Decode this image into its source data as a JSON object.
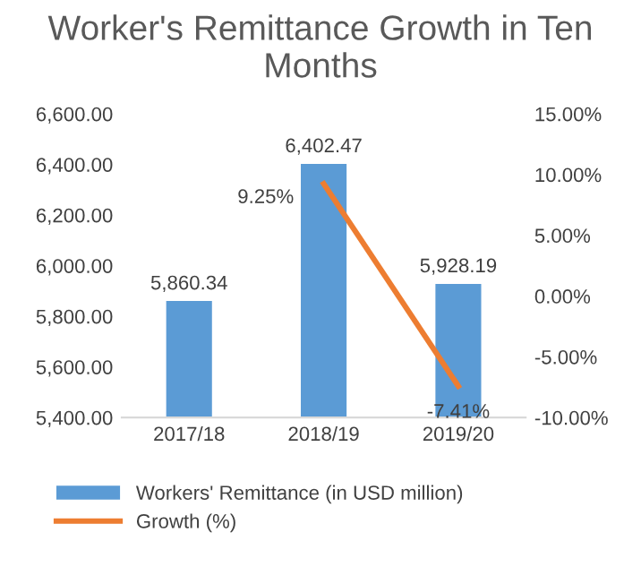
{
  "chart_data": {
    "type": "bar",
    "title": "Worker's Remittance Growth in Ten Months",
    "categories": [
      "2017/18",
      "2018/19",
      "2019/20"
    ],
    "series": [
      {
        "name": "Workers' Remittance (in USD million)",
        "color": "#5b9bd5",
        "values": [
          5860.34,
          6402.47,
          5928.19
        ],
        "value_labels": [
          "5,860.34",
          "6,402.47",
          "5,928.19"
        ]
      },
      {
        "type": "line",
        "name": "Growth (%)",
        "color": "#ed7d31",
        "axis": "y2",
        "values": [
          null,
          9.25,
          -7.41
        ],
        "value_labels": [
          null,
          "9.25%",
          "-7.41%"
        ]
      }
    ],
    "ylim": [
      5400,
      6600
    ],
    "yticks": [
      {
        "value": 5400,
        "label": "5,400.00"
      },
      {
        "value": 5600,
        "label": "5,600.00"
      },
      {
        "value": 5800,
        "label": "5,800.00"
      },
      {
        "value": 6000,
        "label": "6,000.00"
      },
      {
        "value": 6200,
        "label": "6,200.00"
      },
      {
        "value": 6400,
        "label": "6,400.00"
      },
      {
        "value": 6600,
        "label": "6,600.00"
      }
    ],
    "y2lim": [
      -10,
      15
    ],
    "y2ticks": [
      {
        "value": -10,
        "label": "-10.00%"
      },
      {
        "value": -5,
        "label": "-5.00%"
      },
      {
        "value": 0,
        "label": "0.00%"
      },
      {
        "value": 5,
        "label": "5.00%"
      },
      {
        "value": 10,
        "label": "10.00%"
      },
      {
        "value": 15,
        "label": "15.00%"
      }
    ],
    "legend": "bottom"
  }
}
